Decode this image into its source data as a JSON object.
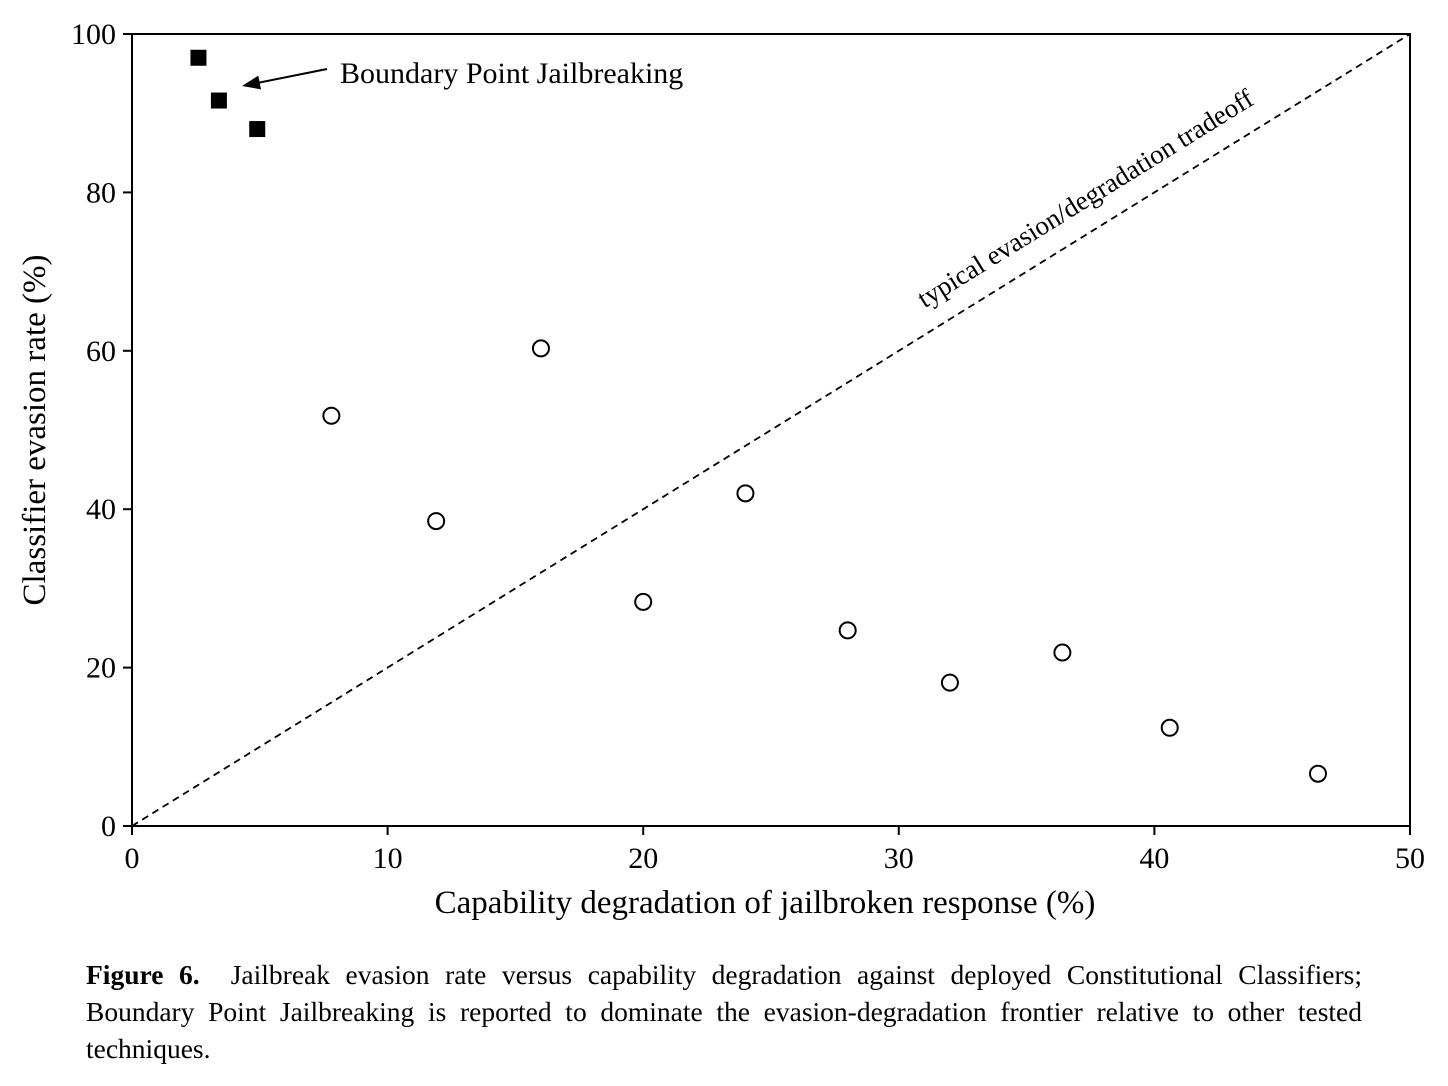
{
  "chart_data": {
    "type": "scatter",
    "xlabel": "Capability degradation of jailbroken response (%)",
    "ylabel": "Classifier evasion rate (%)",
    "xlim": [
      0,
      50
    ],
    "ylim": [
      0,
      100
    ],
    "x_ticks": [
      "0",
      "10",
      "20",
      "30",
      "40",
      "50"
    ],
    "y_ticks": [
      "0",
      "20",
      "40",
      "60",
      "80",
      "100"
    ],
    "grid": false,
    "series": [
      {
        "name": "Boundary Point Jailbreaking",
        "marker": "filled-square",
        "color": "#000000",
        "points": [
          {
            "x": 2.6,
            "y": 97.0
          },
          {
            "x": 3.4,
            "y": 91.6
          },
          {
            "x": 4.9,
            "y": 88.0
          }
        ]
      },
      {
        "marker": "open-circle",
        "color": "#000000",
        "points": [
          {
            "x": 7.8,
            "y": 51.8
          },
          {
            "x": 11.9,
            "y": 38.5
          },
          {
            "x": 16.0,
            "y": 60.3
          },
          {
            "x": 20.0,
            "y": 28.3
          },
          {
            "x": 24.0,
            "y": 42.0
          },
          {
            "x": 28.0,
            "y": 24.7
          },
          {
            "x": 32.0,
            "y": 18.1
          },
          {
            "x": 36.4,
            "y": 21.9
          },
          {
            "x": 40.6,
            "y": 12.4
          },
          {
            "x": 46.4,
            "y": 6.6
          }
        ]
      }
    ],
    "reference_line": {
      "label": "typical evasion/degradation tradeoff",
      "style": "dashed",
      "from": {
        "x": 0,
        "y": 0
      },
      "to": {
        "x": 50,
        "y": 100
      }
    },
    "annotations": [
      {
        "text": "Boundary Point Jailbreaking",
        "arrow": true
      }
    ]
  },
  "caption": {
    "label": "Figure 6.",
    "text": "Jailbreak evasion rate versus capability degradation against deployed Constitutional Classifiers; Boundary Point Jailbreaking is reported to dominate the evasion-degradation frontier relative to other tested techniques."
  }
}
